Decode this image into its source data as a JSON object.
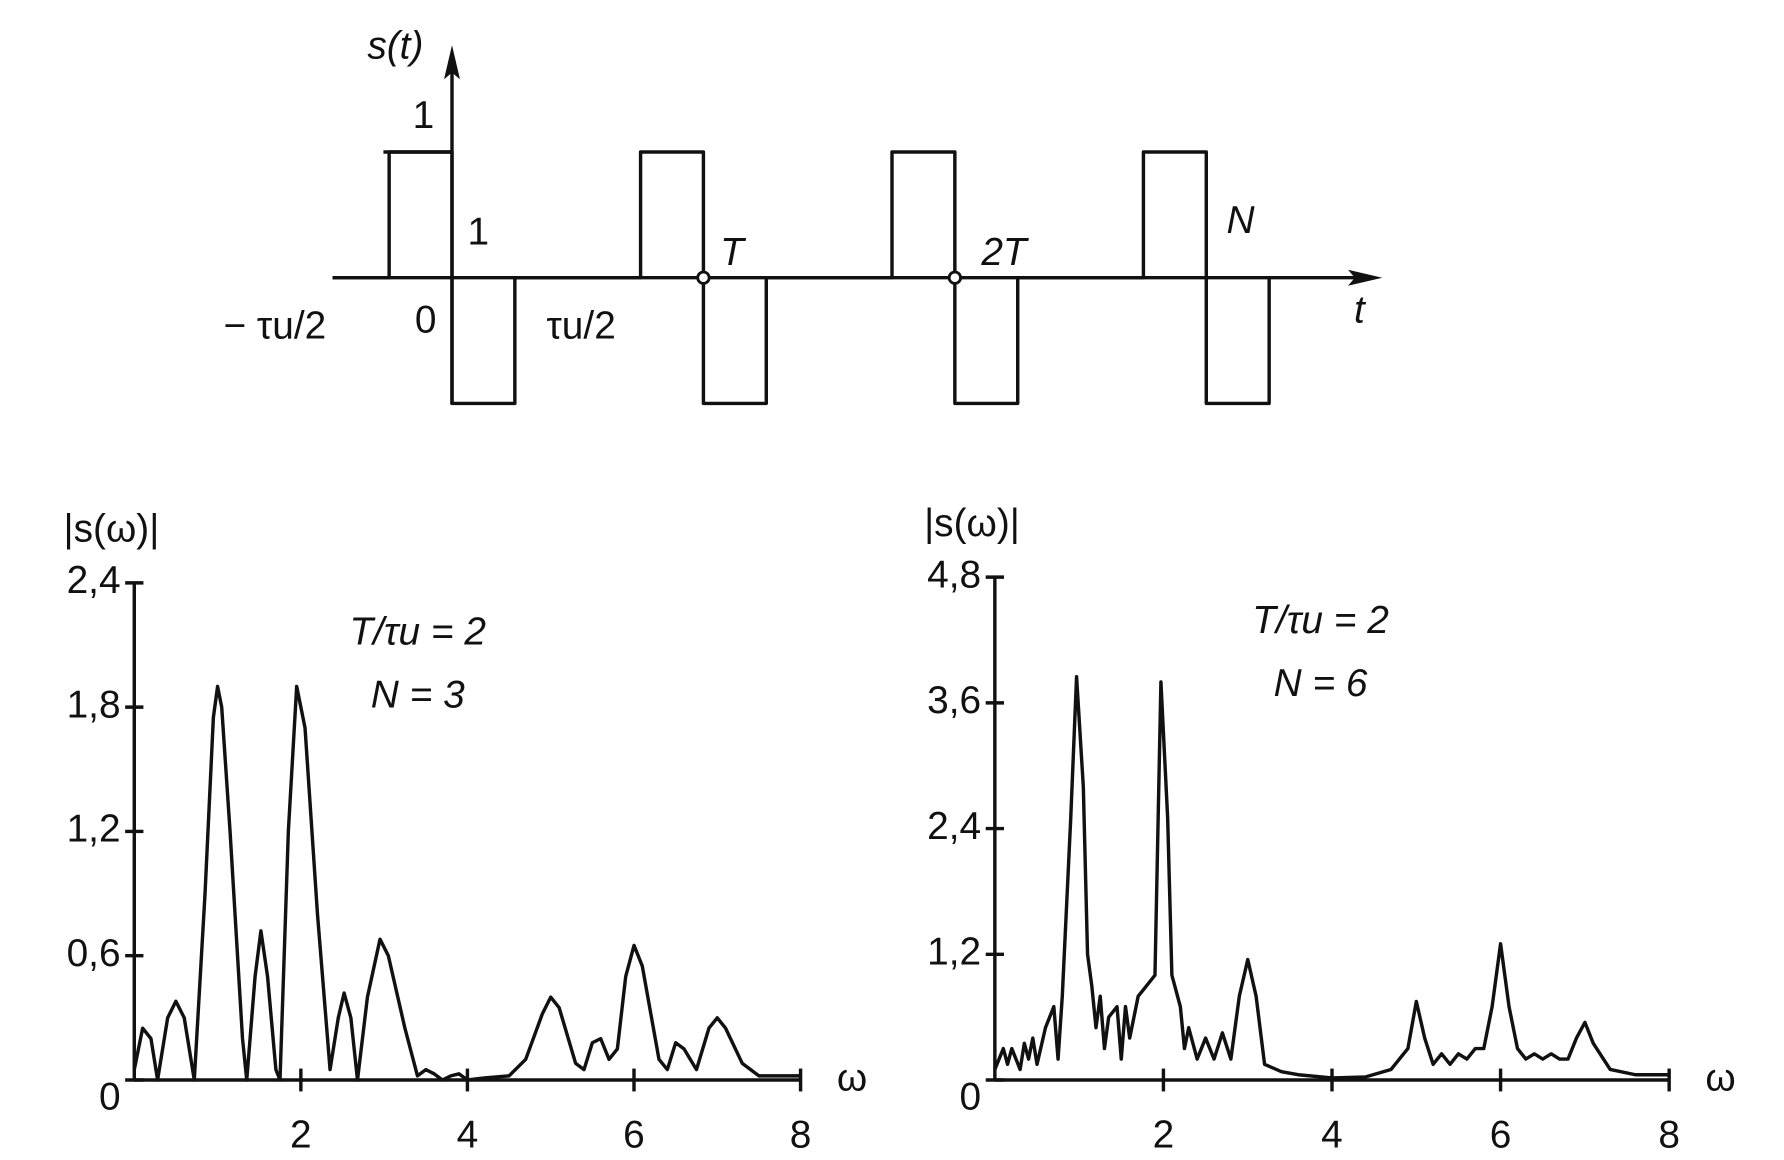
{
  "chart_data": [
    {
      "type": "signal",
      "y_label": "s(t)",
      "x_label": "t",
      "color": "#111",
      "x": [
        -0.95,
        -0.5,
        -0.5,
        0,
        0,
        0.5,
        0.5,
        1.5,
        1.5,
        2,
        2,
        2.5,
        2.5,
        3.5,
        3.5,
        4,
        4,
        4.5,
        4.5,
        5.5,
        5.5,
        6,
        6,
        6.5,
        6.5
      ],
      "values": [
        0,
        0,
        1,
        1,
        -1,
        -1,
        0,
        0,
        1,
        1,
        -1,
        -1,
        0,
        0,
        1,
        1,
        -1,
        -1,
        0,
        0,
        1,
        1,
        -1,
        -1,
        0
      ],
      "xlim": [
        -0.95,
        7.4
      ],
      "ylim": [
        -1.1,
        1.85
      ],
      "xticks": [
        {
          "value": -0.5,
          "label": "− τu/2"
        },
        0,
        {
          "value": 0.5,
          "label": "τu/2"
        },
        {
          "value": 2,
          "label": "T"
        },
        {
          "value": 4,
          "label": "2T"
        }
      ],
      "yticks": [
        1
      ],
      "annotations": [
        "1",
        "N"
      ]
    },
    {
      "type": "line",
      "y_label": "|s(ω)|",
      "x_label": "ω",
      "color": "#111",
      "annotations": [
        "T/τu = 2",
        "N = 3"
      ],
      "x": [
        0,
        0.1,
        0.2,
        0.28,
        0.4,
        0.5,
        0.6,
        0.72,
        0.85,
        0.95,
        1.0,
        1.05,
        1.15,
        1.3,
        1.35,
        1.45,
        1.52,
        1.6,
        1.7,
        1.75,
        1.85,
        1.95,
        2.05,
        2.2,
        2.35,
        2.45,
        2.52,
        2.6,
        2.68,
        2.8,
        2.95,
        3.05,
        3.25,
        3.4,
        3.5,
        3.6,
        3.7,
        3.8,
        3.9,
        4.0,
        4.2,
        4.5,
        4.7,
        4.9,
        5.0,
        5.1,
        5.3,
        5.4,
        5.5,
        5.6,
        5.7,
        5.8,
        5.9,
        6.0,
        6.1,
        6.3,
        6.4,
        6.5,
        6.6,
        6.75,
        6.9,
        7.0,
        7.1,
        7.3,
        7.5,
        8
      ],
      "values": [
        0.05,
        0.25,
        0.2,
        0,
        0.3,
        0.38,
        0.3,
        0,
        0.9,
        1.75,
        1.9,
        1.8,
        1.2,
        0.2,
        0,
        0.5,
        0.72,
        0.5,
        0.05,
        0,
        1.2,
        1.9,
        1.7,
        0.8,
        0.05,
        0.3,
        0.42,
        0.3,
        0,
        0.4,
        0.68,
        0.6,
        0.25,
        0.02,
        0.05,
        0.03,
        0,
        0.02,
        0.03,
        0,
        0.01,
        0.02,
        0.1,
        0.32,
        0.4,
        0.35,
        0.08,
        0.05,
        0.18,
        0.2,
        0.1,
        0.15,
        0.5,
        0.65,
        0.55,
        0.1,
        0.05,
        0.18,
        0.15,
        0.05,
        0.25,
        0.3,
        0.25,
        0.08,
        0.02,
        0.02
      ],
      "xlim": [
        0,
        8
      ],
      "ylim": [
        0,
        2.4
      ],
      "xticks": [
        2,
        4,
        6,
        8
      ],
      "yticks": [
        0,
        {
          "value": 0.6,
          "label": "0,6"
        },
        {
          "value": 1.2,
          "label": "1,2"
        },
        {
          "value": 1.8,
          "label": "1,8"
        },
        {
          "value": 2.4,
          "label": "2,4"
        }
      ]
    },
    {
      "type": "line",
      "y_label": "|s(ω)|",
      "x_label": "ω",
      "color": "#111",
      "annotations": [
        "T/τu = 2",
        "N = 6"
      ],
      "x": [
        0,
        0.1,
        0.15,
        0.2,
        0.3,
        0.35,
        0.4,
        0.45,
        0.5,
        0.6,
        0.7,
        0.75,
        0.8,
        0.9,
        0.97,
        1.05,
        1.1,
        1.15,
        1.2,
        1.25,
        1.3,
        1.35,
        1.45,
        1.5,
        1.55,
        1.6,
        1.7,
        1.8,
        1.9,
        1.97,
        2.05,
        2.1,
        2.2,
        2.25,
        2.3,
        2.4,
        2.5,
        2.6,
        2.7,
        2.8,
        2.9,
        3.0,
        3.1,
        3.2,
        3.4,
        3.6,
        4,
        4.4,
        4.7,
        4.9,
        5.0,
        5.1,
        5.2,
        5.3,
        5.4,
        5.5,
        5.6,
        5.7,
        5.8,
        5.9,
        6.0,
        6.1,
        6.2,
        6.3,
        6.4,
        6.5,
        6.6,
        6.7,
        6.8,
        6.9,
        7.0,
        7.1,
        7.3,
        7.6,
        8
      ],
      "values": [
        0.1,
        0.3,
        0.15,
        0.3,
        0.1,
        0.35,
        0.2,
        0.4,
        0.15,
        0.5,
        0.7,
        0.2,
        0.8,
        2.5,
        3.85,
        2.8,
        1.2,
        0.9,
        0.5,
        0.8,
        0.3,
        0.6,
        0.7,
        0.2,
        0.7,
        0.4,
        0.8,
        0.9,
        1.0,
        3.8,
        2.5,
        1.0,
        0.7,
        0.3,
        0.5,
        0.2,
        0.4,
        0.2,
        0.45,
        0.2,
        0.8,
        1.15,
        0.8,
        0.15,
        0.08,
        0.05,
        0.02,
        0.03,
        0.1,
        0.3,
        0.75,
        0.4,
        0.15,
        0.25,
        0.15,
        0.25,
        0.2,
        0.3,
        0.3,
        0.7,
        1.3,
        0.7,
        0.3,
        0.2,
        0.25,
        0.2,
        0.25,
        0.2,
        0.2,
        0.4,
        0.55,
        0.35,
        0.1,
        0.05,
        0.05
      ],
      "xlim": [
        0,
        8
      ],
      "ylim": [
        0,
        4.8
      ],
      "xticks": [
        2,
        4,
        6,
        8
      ],
      "yticks": [
        0,
        {
          "value": 1.2,
          "label": "1,2"
        },
        {
          "value": 2.4,
          "label": "2,4"
        },
        {
          "value": 3.6,
          "label": "3,6"
        },
        {
          "value": 4.8,
          "label": "4,8"
        }
      ]
    }
  ]
}
